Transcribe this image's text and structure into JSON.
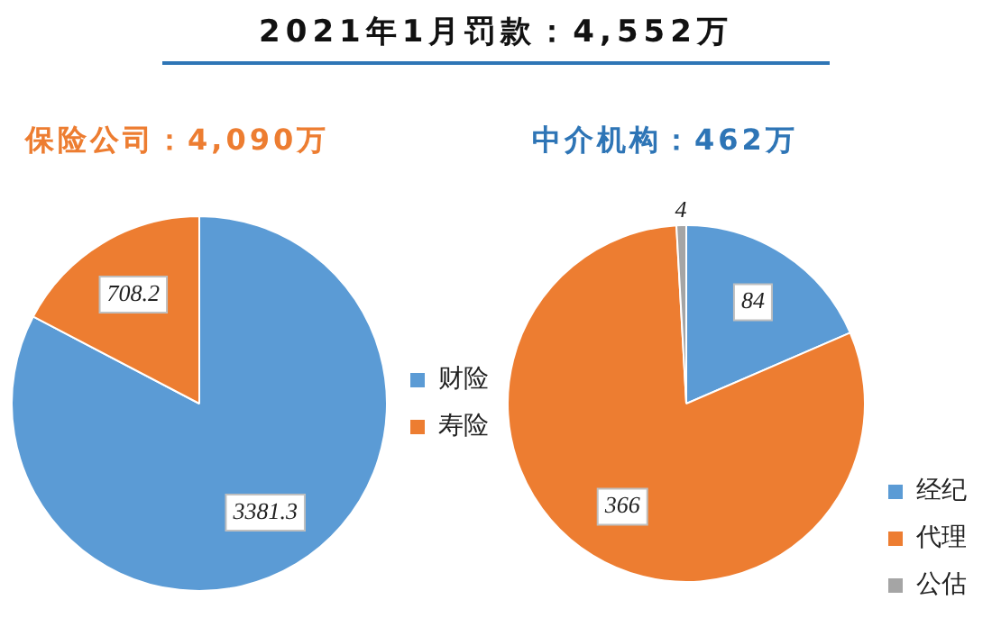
{
  "chart_data": [
    {
      "type": "other",
      "title": "2021年1月罚款：4,552万"
    },
    {
      "type": "pie",
      "title": "保险公司：4,090万",
      "categories": [
        "财险",
        "寿险"
      ],
      "values": [
        3381.3,
        708.2
      ],
      "colors": [
        "#5b9bd5",
        "#ed7d31"
      ],
      "data_labels": true,
      "legend": "right"
    },
    {
      "type": "pie",
      "title": "中介机构：462万",
      "categories": [
        "经纪",
        "代理",
        "公估"
      ],
      "values": [
        84,
        366,
        4
      ],
      "colors": [
        "#5b9bd5",
        "#ed7d31",
        "#a5a5a5"
      ],
      "data_labels": true,
      "legend": "bottom right"
    }
  ]
}
